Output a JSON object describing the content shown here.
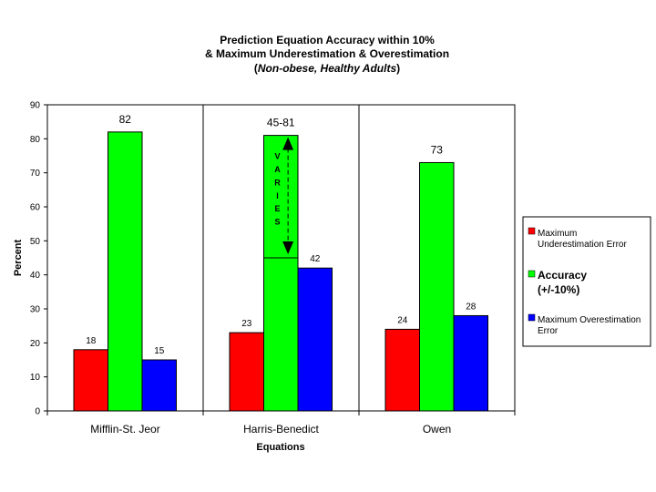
{
  "chart_data": {
    "type": "bar",
    "title_lines": [
      "Prediction Equation Accuracy within 10%",
      "& Maximum Underestimation & Overestimation"
    ],
    "subtitle": {
      "prefix": "(",
      "italic": "Non-obese, Healthy Adults",
      "suffix": ")"
    },
    "xlabel": "Equations",
    "ylabel": "Percent",
    "ylim": [
      0,
      90
    ],
    "yticks": [
      "0",
      "10",
      "20",
      "30",
      "40",
      "50",
      "60",
      "70",
      "80",
      "90"
    ],
    "grid": "vertical category separators only",
    "legend_position": "right",
    "categories": [
      "Mifflin-St. Jeor",
      "Harris-Benedict",
      "Owen"
    ],
    "series": [
      {
        "name_lines": [
          "Maximum",
          "Underestimation Error"
        ],
        "color": "#ff0000",
        "values": [
          18,
          23,
          24
        ],
        "labels": [
          "18",
          "23",
          "24"
        ]
      },
      {
        "name_lines": [
          "Accuracy",
          "(+/-10%)"
        ],
        "color": "#00ff00",
        "values": [
          82,
          81,
          73
        ],
        "labels": [
          "82",
          "45-81",
          "73"
        ]
      },
      {
        "name_lines": [
          "Maximum Overestimation",
          "Error"
        ],
        "color": "#0000ff",
        "values": [
          15,
          42,
          28
        ],
        "labels": [
          "15",
          "42",
          "28"
        ]
      }
    ],
    "annotation": {
      "category": "Harris-Benedict",
      "range": [
        45,
        81
      ],
      "letters": [
        "V",
        "A",
        "R",
        "I",
        "E",
        "S"
      ]
    }
  }
}
